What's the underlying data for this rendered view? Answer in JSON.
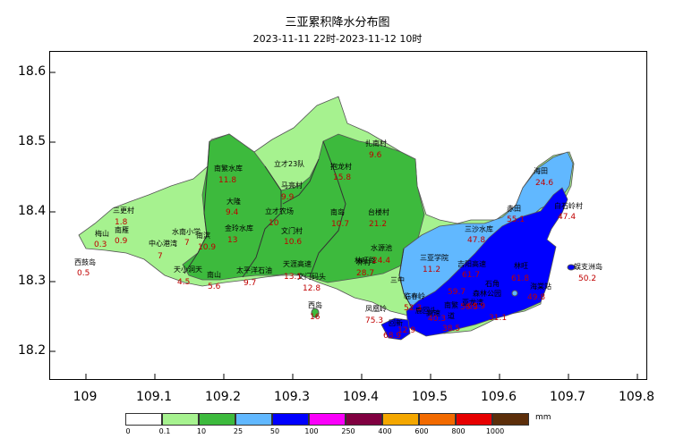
{
  "title": "三亚累积降水分布图",
  "subtitle": "2023-11-11 22时-2023-11-12 10时",
  "axes": {
    "y_ticks": [
      "18.6",
      "18.5",
      "18.4",
      "18.3",
      "18.2"
    ],
    "x_ticks": [
      "109",
      "109.1",
      "109.2",
      "109.3",
      "109.4",
      "109.5",
      "109.6",
      "109.7",
      "109.8"
    ]
  },
  "legend": {
    "unit": "mm",
    "breaks": [
      "0",
      "0.1",
      "10",
      "25",
      "50",
      "100",
      "250",
      "400",
      "600",
      "800",
      "1000"
    ],
    "colors": [
      "#ffffff",
      "#a6f28f",
      "#3dba3d",
      "#61b8ff",
      "#0000ff",
      "#fa00fa",
      "#800040",
      "#f4a700",
      "#f26a00",
      "#e60000",
      "#5c2e0a"
    ]
  },
  "stations": [
    {
      "name": "西鼓岛",
      "value": "0.5"
    },
    {
      "name": "梅山",
      "value": "0.3"
    },
    {
      "name": "南雁",
      "value": "0.9"
    },
    {
      "name": "三更村",
      "value": "1.8"
    },
    {
      "name": "中心港湾",
      "value": "7"
    },
    {
      "name": "水南小学",
      "value": "7"
    },
    {
      "name": "天小洞天",
      "value": "4.5"
    },
    {
      "name": "南滨",
      "value": "10.9"
    },
    {
      "name": "南山",
      "value": "5.6"
    },
    {
      "name": "南繁水库",
      "value": "11.8"
    },
    {
      "name": "大隆",
      "value": "9.4"
    },
    {
      "name": "金玲水库",
      "value": "13"
    },
    {
      "name": "立才农场",
      "value": "10"
    },
    {
      "name": "立才23队",
      "value": ""
    },
    {
      "name": "马亮村",
      "value": "9.9"
    },
    {
      "name": "文门村",
      "value": "10.6"
    },
    {
      "name": "太平洋石油",
      "value": "9.7"
    },
    {
      "name": "天涯高速",
      "value": "13.1"
    },
    {
      "name": "文门码头",
      "value": "12.8"
    },
    {
      "name": "扎南村",
      "value": "9.6"
    },
    {
      "name": "抱龙村",
      "value": "15.8"
    },
    {
      "name": "南岛",
      "value": "10.7"
    },
    {
      "name": "台楼村",
      "value": "21.2"
    },
    {
      "name": "西岛",
      "value": "16"
    },
    {
      "name": "水源池",
      "value": ""
    },
    {
      "name": "林旺路",
      "value": "24.4"
    },
    {
      "name": "林村",
      "value": "28.7"
    },
    {
      "name": "三亚学院",
      "value": "11.2"
    },
    {
      "name": "三中",
      "value": ""
    },
    {
      "name": "凤凰岭",
      "value": "75.3"
    },
    {
      "name": "临春岭",
      "value": "52.3"
    },
    {
      "name": "吉阳高速",
      "value": "61.7"
    },
    {
      "name": "南繁",
      "value": "59.7"
    },
    {
      "name": "亚龙湾",
      "value": "56.5"
    },
    {
      "name": "森林公园",
      "value": "60.9"
    },
    {
      "name": "高速",
      "value": "40.3"
    },
    {
      "name": "回新",
      "value": "12.9"
    },
    {
      "name": "鹿回头",
      "value": "68.9"
    },
    {
      "name": "道",
      "value": "38.5"
    },
    {
      "name": "三沙水库",
      "value": "47.8"
    },
    {
      "name": "赤田",
      "value": "55.1"
    },
    {
      "name": "海田",
      "value": "24.6"
    },
    {
      "name": "白石岭村",
      "value": "47.4"
    },
    {
      "name": "林旺",
      "value": "61.8"
    },
    {
      "name": "蜈支洲岛",
      "value": "50.2"
    },
    {
      "name": "海棠站",
      "value": "49.8"
    },
    {
      "name": "石角",
      "value": "31.1"
    }
  ]
}
